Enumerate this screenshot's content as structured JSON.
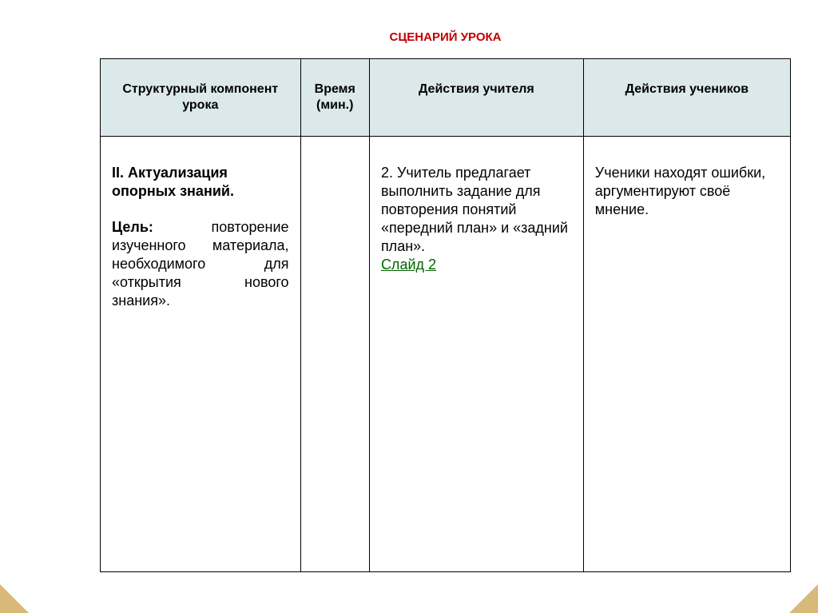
{
  "title": {
    "text": "СЦЕНАРИЙ  УРОКА",
    "color": "#c00000"
  },
  "header": {
    "bg": "#dbe9ea",
    "cols": [
      "Структурный компонент урока",
      "Время (мин.)",
      "Действия учителя",
      "Действия учеников"
    ]
  },
  "row": {
    "component": {
      "heading": "II. Актуализация опорных знаний.",
      "goal_label": "Цель:",
      "goal_text": "повторение изученного материала, необходимого для «открытия нового знания»."
    },
    "time": "",
    "teacher": {
      "text": "2. Учитель предлагает выполнить задание для повторения понятий «передний план» и «задний план».",
      "slide_label": " Слайд 2"
    },
    "students": "Ученики находят ошибки, аргументируют своё мнение."
  },
  "style": {
    "link_color": "#006600",
    "corner_color": "#d7b97a"
  }
}
